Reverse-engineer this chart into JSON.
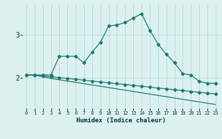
{
  "xlabel": "Humidex (Indice chaleur)",
  "x_values": [
    0,
    1,
    2,
    3,
    4,
    5,
    6,
    7,
    8,
    9,
    10,
    11,
    12,
    13,
    14,
    15,
    16,
    17,
    18,
    19,
    20,
    21,
    22,
    23
  ],
  "line1_y": [
    2.07,
    2.07,
    2.07,
    2.07,
    2.5,
    2.5,
    2.5,
    2.35,
    2.6,
    2.82,
    3.2,
    3.22,
    3.28,
    3.38,
    3.48,
    3.1,
    2.78,
    2.55,
    2.35,
    2.1,
    2.07,
    1.92,
    1.88,
    1.88
  ],
  "line2_y": [
    2.07,
    2.07,
    2.05,
    2.03,
    2.01,
    1.99,
    1.97,
    1.95,
    1.93,
    1.91,
    1.89,
    1.87,
    1.85,
    1.83,
    1.81,
    1.79,
    1.77,
    1.75,
    1.73,
    1.71,
    1.69,
    1.67,
    1.65,
    1.63
  ],
  "line3_y": [
    2.07,
    2.07,
    2.03,
    1.99,
    1.96,
    1.93,
    1.9,
    1.87,
    1.84,
    1.81,
    1.78,
    1.75,
    1.72,
    1.69,
    1.66,
    1.63,
    1.6,
    1.57,
    1.54,
    1.51,
    1.48,
    1.45,
    1.42,
    1.39
  ],
  "color": "#1a7a6e",
  "bg_color": "#ddf0f0",
  "grid_color": "#aad4d4",
  "yticks": [
    2,
    3
  ],
  "ylim": [
    1.3,
    3.7
  ],
  "xlim": [
    -0.5,
    23.5
  ],
  "marker": "D",
  "marker_size": 2.2,
  "linewidth": 0.9,
  "tick_fontsize": 5.0,
  "xlabel_fontsize": 6.5
}
